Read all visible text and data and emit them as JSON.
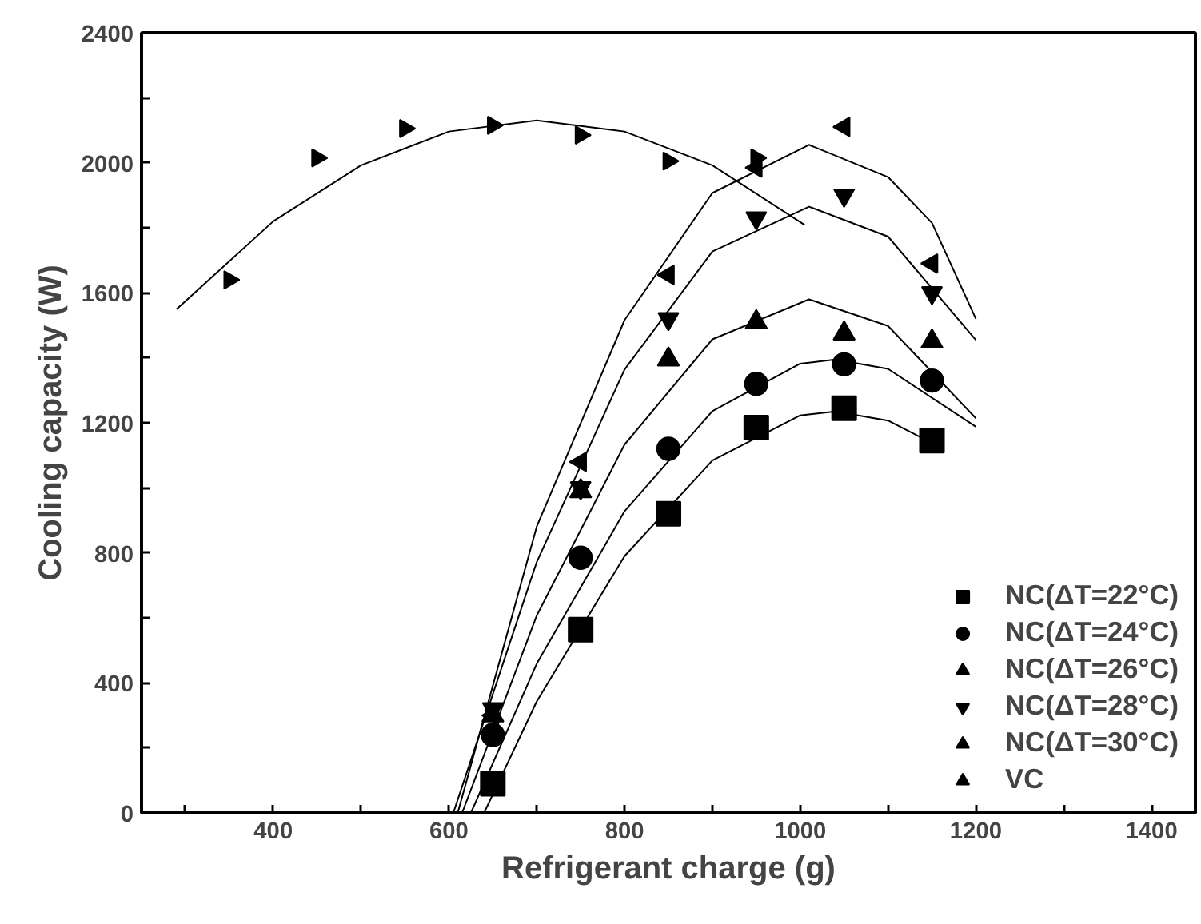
{
  "chart_data": {
    "type": "scatter",
    "xlabel": "Refrigerant charge (g)",
    "ylabel": "Cooling capacity (W)",
    "xlim": [
      250,
      1450
    ],
    "ylim": [
      0,
      2400
    ],
    "xticks": [
      {
        "value": 300,
        "label": null
      },
      400,
      {
        "value": 500,
        "label": null
      },
      600,
      {
        "value": 700,
        "label": null
      },
      800,
      {
        "value": 900,
        "label": null
      },
      1000,
      {
        "value": 1100,
        "label": null
      },
      1200,
      {
        "value": 1300,
        "label": null
      },
      1400
    ],
    "yticks": [
      0,
      {
        "value": 200,
        "label": null
      },
      400,
      {
        "value": 600,
        "label": null
      },
      800,
      {
        "value": 1000,
        "label": null
      },
      1200,
      {
        "value": 1400,
        "label": null
      },
      1600,
      {
        "value": 1800,
        "label": null
      },
      2000,
      {
        "value": 2200,
        "label": null
      },
      2400
    ],
    "grid": false,
    "legend": "bottom right",
    "series": [
      {
        "name": "NC(ΔT=22°C)",
        "color": "#000000",
        "marker": "square",
        "x": [
          650,
          750,
          850,
          950,
          1050,
          1150
        ],
        "values": [
          90,
          564,
          920,
          1185,
          1245,
          1145
        ]
      },
      {
        "name": "NC(ΔT=24°C)",
        "color": "#000000",
        "marker": "circle",
        "x": [
          650,
          750,
          850,
          950,
          1050,
          1150
        ],
        "values": [
          240,
          785,
          1120,
          1320,
          1380,
          1330
        ]
      },
      {
        "name": "NC(ΔT=26°C)",
        "color": "#000000",
        "marker": "triangle",
        "x": [
          650,
          750,
          850,
          950,
          1050,
          1150
        ],
        "values": [
          300,
          990,
          1395,
          1510,
          1475,
          1450
        ]
      },
      {
        "name": "NC(ΔT=28°C)",
        "color": "#000000",
        "marker": "triangle_down",
        "x": [
          650,
          750,
          850,
          950,
          1050,
          1150
        ],
        "values": [
          320,
          1000,
          1520,
          1830,
          1900,
          1600
        ]
      },
      {
        "name": "NC(ΔT=30°C)",
        "color": "#000000",
        "marker": "triangle_left",
        "x": [
          650,
          750,
          850,
          950,
          1050,
          1150
        ],
        "values": [
          300,
          1080,
          1655,
          1985,
          2110,
          1690
        ]
      },
      {
        "name": "VC",
        "color": "#000000",
        "marker": "triangle_right",
        "x": [
          350,
          450,
          550,
          650,
          750,
          850,
          950
        ],
        "values": [
          1640,
          2015,
          2105,
          2115,
          2085,
          2005,
          2015
        ]
      },
      {
        "type": "line",
        "color": "#000000",
        "marker": "none",
        "x": [
          640,
          700,
          800,
          900,
          1000,
          1040,
          1100,
          1160
        ],
        "values": [
          0,
          343,
          790,
          1084,
          1223,
          1235,
          1207,
          1124
        ]
      },
      {
        "type": "line",
        "color": "#000000",
        "marker": "none",
        "x": [
          625,
          700,
          800,
          900,
          1000,
          1040,
          1100,
          1200
        ],
        "values": [
          0,
          459,
          928,
          1236,
          1382,
          1395,
          1366,
          1188
        ]
      },
      {
        "type": "line",
        "color": "#000000",
        "marker": "none",
        "x": [
          615,
          700,
          800,
          900,
          1010,
          1100,
          1200
        ],
        "values": [
          0,
          607,
          1133,
          1457,
          1580,
          1498,
          1214
        ]
      },
      {
        "type": "line",
        "color": "#000000",
        "marker": "none",
        "x": [
          605,
          700,
          800,
          900,
          1010,
          1100,
          1200
        ],
        "values": [
          0,
          772,
          1364,
          1727,
          1865,
          1773,
          1455
        ]
      },
      {
        "type": "line",
        "color": "#000000",
        "marker": "none",
        "x": [
          610,
          700,
          800,
          900,
          1010,
          1100,
          1150,
          1200
        ],
        "values": [
          0,
          881,
          1516,
          1907,
          2055,
          1956,
          1815,
          1520
        ]
      },
      {
        "type": "line",
        "color": "#000000",
        "marker": "none",
        "x": [
          290,
          400,
          500,
          600,
          700,
          800,
          900,
          1005
        ],
        "values": [
          1550,
          1820,
          1992,
          2096,
          2130,
          2096,
          1992,
          1809
        ]
      }
    ]
  }
}
